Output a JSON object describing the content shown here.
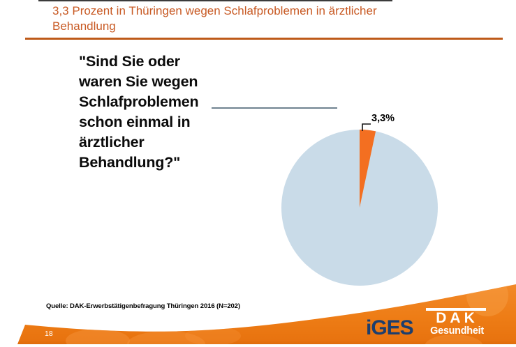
{
  "slide": {
    "title": "3,3 Prozent in Thüringen wegen Schlafproblemen in ärztlicher\nBehandlung",
    "question": "\"Sind Sie oder\nwaren Sie wegen\nSchlafproblemen\nschon einmal in\närztlicher\nBehandlung?\"",
    "source": "Quelle: DAK-Erwerbstätigenbefragung Thüringen 2016 (N=202)",
    "page_number": "18"
  },
  "chart_data": {
    "type": "pie",
    "title": "",
    "slices": [
      {
        "value": 3.3,
        "label": "3,3%",
        "color": "#f36f21"
      },
      {
        "value": 96.7,
        "label": "",
        "color": "#c9dbe8"
      }
    ],
    "legend": "none",
    "notes": "small orange slice starts at 12 o'clock, rest light blue"
  },
  "footer": {
    "iges_logo": "iGES",
    "dak_logo_top": "DAK",
    "dak_logo_bottom": "Gesundheit"
  },
  "colors": {
    "title_text": "#c85a24",
    "title_rule": "#be5a19",
    "callout_line": "#6f8290",
    "band_orange": "#ee7d16",
    "band_orange_dark": "#d96908",
    "iges_blue": "#1c3e6e"
  }
}
